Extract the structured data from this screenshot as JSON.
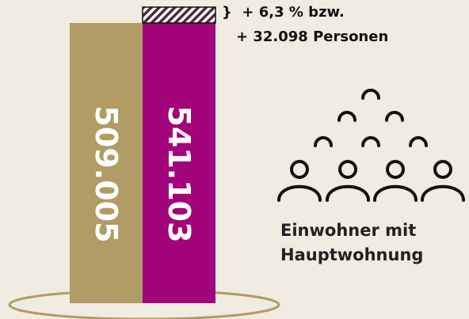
{
  "chart_data": {
    "type": "bar",
    "categories": [
      "",
      ""
    ],
    "values": [
      509005,
      541103
    ],
    "value_labels": [
      "509.005",
      "541.103"
    ],
    "colors": [
      "#b09c64",
      "#a1047b"
    ],
    "increase": {
      "bracket": "}",
      "line1": "+ 6,3 % bzw.",
      "line2": "+ 32.098 Personen"
    },
    "caption": [
      "Einwohner mit",
      "Hauptwohnung"
    ],
    "icon": "people-group-icon",
    "base_ring_color": "#b09c64",
    "grid": false
  }
}
